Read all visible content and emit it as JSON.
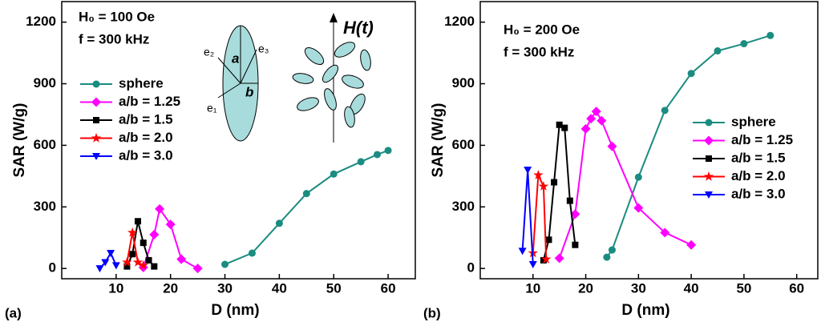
{
  "chart_data": [
    {
      "type": "line",
      "panel_label": "(a)",
      "x_label": "D (nm)",
      "y_label": "SAR  (W/g)",
      "annotations": [
        "H₀ = 100 Oe",
        "f = 300 kHz"
      ],
      "inset_labels": [
        "a",
        "b",
        "e₁",
        "e₂",
        "e₃",
        "H(t)"
      ],
      "xlim": [
        0,
        65
      ],
      "ylim": [
        -50,
        1300
      ],
      "xticks": [
        10,
        20,
        30,
        40,
        50,
        60
      ],
      "yticks": [
        0,
        300,
        600,
        900,
        1200
      ],
      "legend": "upper left",
      "series": [
        {
          "name": "sphere",
          "color": "#1a8c80",
          "marker": "circle",
          "x": [
            30,
            35,
            40,
            45,
            50,
            55,
            58,
            60
          ],
          "values": [
            20,
            75,
            220,
            365,
            460,
            520,
            555,
            575
          ]
        },
        {
          "name": "a/b = 1.25",
          "color": "#ff00ff",
          "marker": "diamond",
          "x": [
            15,
            17,
            18,
            20,
            22,
            25
          ],
          "values": [
            5,
            165,
            290,
            215,
            45,
            0
          ]
        },
        {
          "name": "a/b = 1.5",
          "color": "#000000",
          "marker": "square",
          "x": [
            12,
            13,
            14,
            15,
            16,
            17
          ],
          "values": [
            10,
            70,
            230,
            125,
            40,
            10
          ]
        },
        {
          "name": "a/b = 2.0",
          "color": "#ff0000",
          "marker": "star",
          "x": [
            12,
            13,
            14,
            15
          ],
          "values": [
            30,
            175,
            30,
            15
          ]
        },
        {
          "name": "a/b = 3.0",
          "color": "#0000ff",
          "marker": "triangle-down",
          "x": [
            7,
            8,
            9,
            10
          ],
          "values": [
            0,
            30,
            75,
            15
          ]
        }
      ]
    },
    {
      "type": "line",
      "panel_label": "(b)",
      "x_label": "D (nm)",
      "y_label": "SAR  (W/g)",
      "annotations": [
        "H₀ = 200 Oe",
        "f = 300 kHz"
      ],
      "xlim": [
        0,
        64
      ],
      "ylim": [
        -50,
        1300
      ],
      "xticks": [
        10,
        20,
        30,
        40,
        50,
        60
      ],
      "yticks": [
        0,
        300,
        600,
        900,
        1200
      ],
      "legend": "center right",
      "series": [
        {
          "name": "sphere",
          "color": "#1a8c80",
          "marker": "circle",
          "x": [
            24,
            25,
            30,
            35,
            40,
            45,
            50,
            55
          ],
          "values": [
            55,
            90,
            445,
            770,
            950,
            1060,
            1095,
            1135
          ]
        },
        {
          "name": "a/b = 1.25",
          "color": "#ff00ff",
          "marker": "diamond",
          "x": [
            15,
            18,
            20,
            21,
            22,
            23,
            25,
            30,
            35,
            40
          ],
          "values": [
            50,
            265,
            680,
            730,
            765,
            720,
            595,
            295,
            175,
            115
          ]
        },
        {
          "name": "a/b = 1.5",
          "color": "#000000",
          "marker": "square",
          "x": [
            12,
            13,
            14,
            15,
            16,
            17,
            18
          ],
          "values": [
            40,
            140,
            420,
            700,
            685,
            330,
            115
          ]
        },
        {
          "name": "a/b = 2.0",
          "color": "#ff0000",
          "marker": "star",
          "x": [
            10,
            11,
            12,
            12.5
          ],
          "values": [
            75,
            455,
            400,
            45
          ]
        },
        {
          "name": "a/b = 3.0",
          "color": "#0000ff",
          "marker": "triangle-down",
          "x": [
            8,
            9,
            10
          ],
          "values": [
            85,
            480,
            20
          ]
        }
      ]
    }
  ]
}
